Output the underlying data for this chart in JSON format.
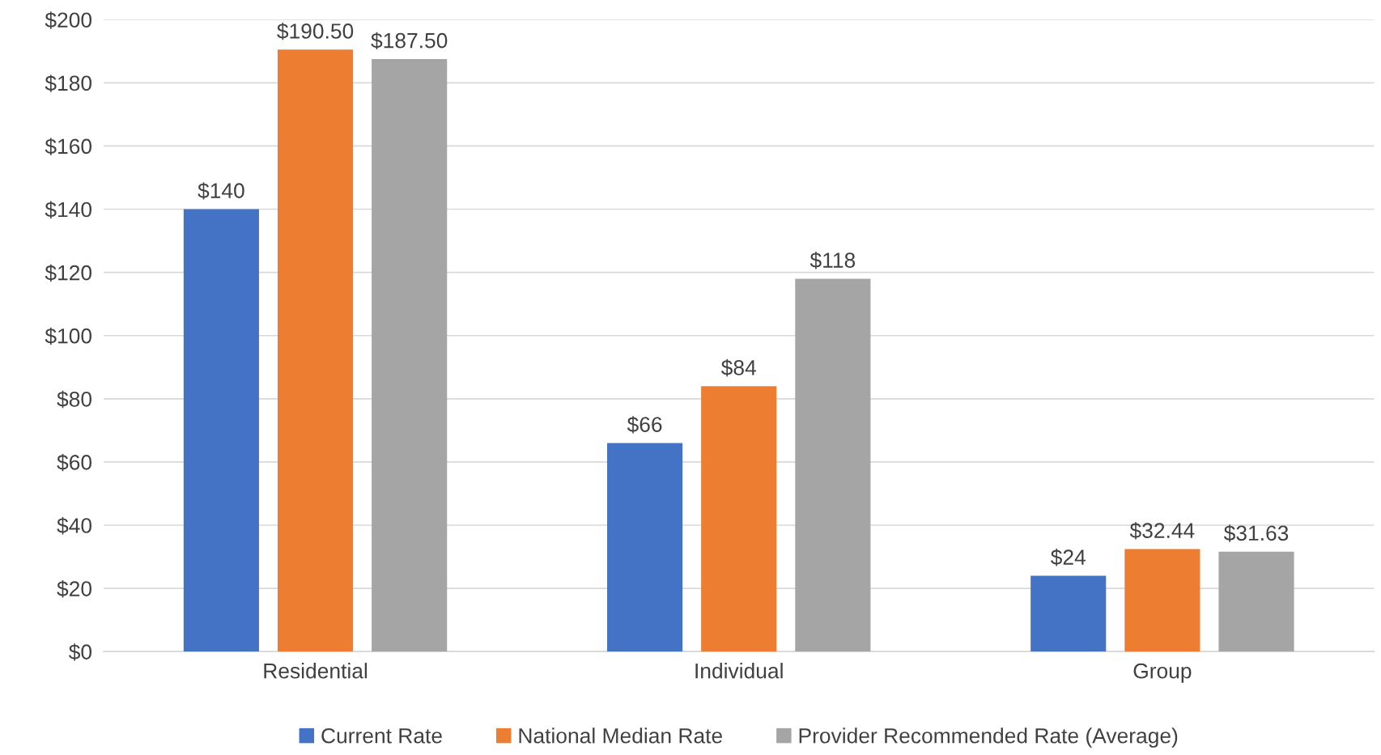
{
  "chart_data": {
    "type": "bar",
    "categories": [
      "Residential",
      "Individual",
      "Group"
    ],
    "series": [
      {
        "name": "Current Rate",
        "color": "#4472c4",
        "values": [
          140,
          66,
          24
        ],
        "value_labels": [
          "$140",
          "$66",
          "$24"
        ]
      },
      {
        "name": "National Median Rate",
        "color": "#ed7d31",
        "values": [
          190.5,
          84,
          32.44
        ],
        "value_labels": [
          "$190.50",
          "$84",
          "$32.44"
        ]
      },
      {
        "name": "Provider Recommended Rate (Average)",
        "color": "#a5a5a5",
        "values": [
          187.5,
          118,
          31.63
        ],
        "value_labels": [
          "$187.50",
          "$118",
          "$31.63"
        ]
      }
    ],
    "ylim": [
      0,
      200
    ],
    "yticks": [
      {
        "value": 0,
        "label": "$0"
      },
      {
        "value": 20,
        "label": "$20"
      },
      {
        "value": 40,
        "label": "$40"
      },
      {
        "value": 60,
        "label": "$60"
      },
      {
        "value": 80,
        "label": "$80"
      },
      {
        "value": 100,
        "label": "$100"
      },
      {
        "value": 120,
        "label": "$120"
      },
      {
        "value": 140,
        "label": "$140"
      },
      {
        "value": 160,
        "label": "$160"
      },
      {
        "value": 180,
        "label": "$180"
      },
      {
        "value": 200,
        "label": "$200"
      }
    ],
    "grid": "y",
    "legend": "bottom"
  }
}
